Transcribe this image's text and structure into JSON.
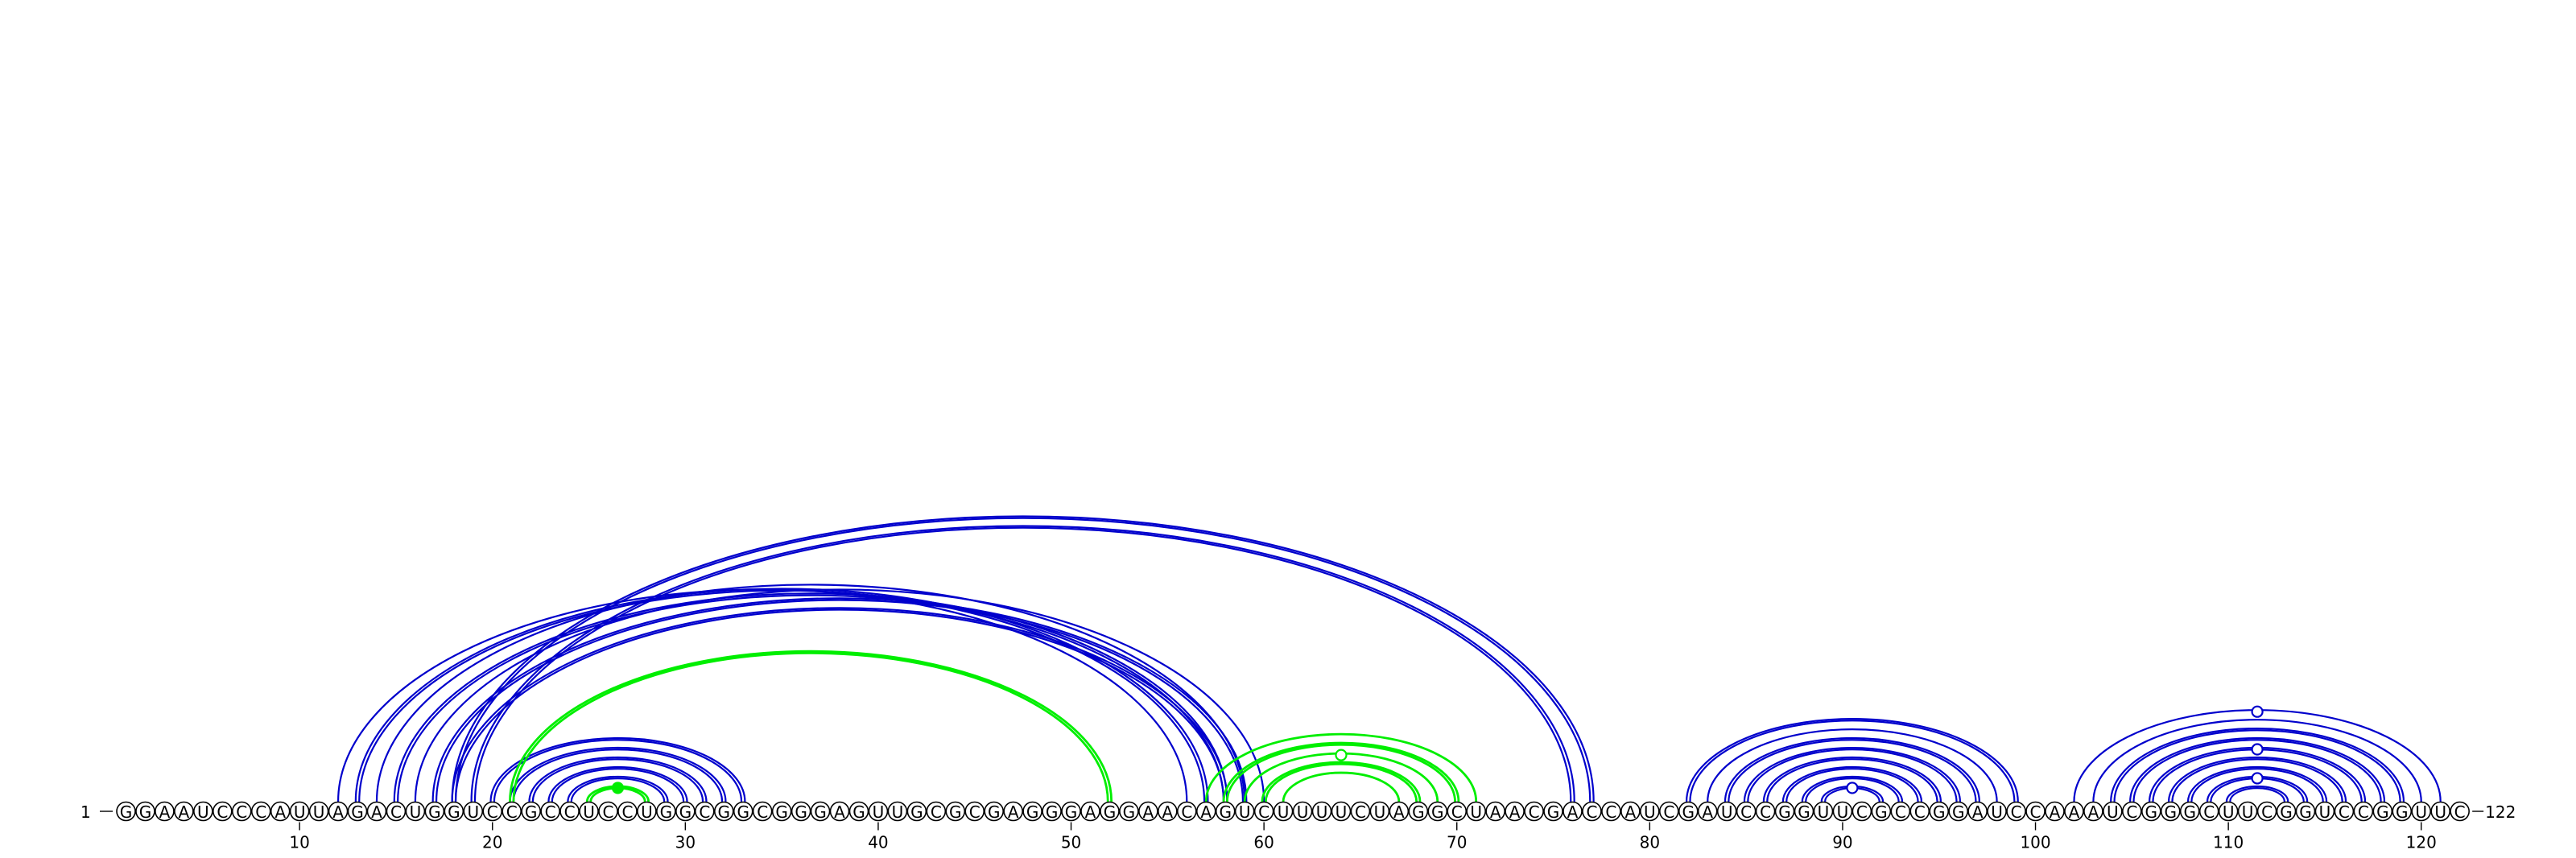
{
  "sequence": "GGAAUCCCAUUAGACUGGUCCGCCUCCUGGCGGCGGGAGUUGCGCGAGGGAGGAACAGUCUUUUCUAGGCUAACGACCAUCGAUCCGGUUCGCCGGAUCCAAAUCGGGCUUCGGUCCGGUUC",
  "start_label": "1",
  "end_label": "122",
  "tick_labels": [
    "10",
    "20",
    "30",
    "40",
    "50",
    "60",
    "70",
    "80",
    "90",
    "100",
    "110",
    "120"
  ],
  "tick_positions": [
    10,
    20,
    30,
    40,
    50,
    60,
    70,
    80,
    90,
    100,
    110,
    120
  ],
  "colors": {
    "blue": "#0000cc",
    "green": "#00ee00"
  },
  "pairs": [
    {
      "i": 12,
      "j": 56,
      "color": "blue",
      "double": false
    },
    {
      "i": 13,
      "j": 57,
      "color": "blue",
      "double": true
    },
    {
      "i": 14,
      "j": 59,
      "color": "blue",
      "double": false
    },
    {
      "i": 15,
      "j": 58,
      "color": "blue",
      "double": true
    },
    {
      "i": 16,
      "j": 60,
      "color": "blue",
      "double": false
    },
    {
      "i": 17,
      "j": 59,
      "color": "blue",
      "double": true
    },
    {
      "i": 18,
      "j": 58,
      "color": "blue",
      "double": true
    },
    {
      "i": 18,
      "j": 77,
      "color": "blue",
      "double": true
    },
    {
      "i": 19,
      "j": 76,
      "color": "blue",
      "double": true
    },
    {
      "i": 20,
      "j": 33,
      "color": "blue",
      "double": true
    },
    {
      "i": 21,
      "j": 32,
      "color": "blue",
      "double": true
    },
    {
      "i": 22,
      "j": 31,
      "color": "blue",
      "double": true
    },
    {
      "i": 23,
      "j": 30,
      "color": "blue",
      "double": true
    },
    {
      "i": 24,
      "j": 29,
      "color": "blue",
      "double": true
    },
    {
      "i": 25,
      "j": 28,
      "color": "green",
      "double": true
    },
    {
      "i": 21,
      "j": 52,
      "color": "green",
      "double": true
    },
    {
      "i": 57,
      "j": 71,
      "color": "green",
      "double": false
    },
    {
      "i": 58,
      "j": 70,
      "color": "green",
      "double": true
    },
    {
      "i": 59,
      "j": 69,
      "color": "green",
      "double": false
    },
    {
      "i": 60,
      "j": 68,
      "color": "green",
      "double": true
    },
    {
      "i": 61,
      "j": 67,
      "color": "green",
      "double": false
    },
    {
      "i": 82,
      "j": 99,
      "color": "blue",
      "double": true
    },
    {
      "i": 83,
      "j": 98,
      "color": "blue",
      "double": false
    },
    {
      "i": 84,
      "j": 97,
      "color": "blue",
      "double": true
    },
    {
      "i": 85,
      "j": 96,
      "color": "blue",
      "double": true
    },
    {
      "i": 86,
      "j": 95,
      "color": "blue",
      "double": true
    },
    {
      "i": 87,
      "j": 94,
      "color": "blue",
      "double": true
    },
    {
      "i": 88,
      "j": 93,
      "color": "blue",
      "double": true
    },
    {
      "i": 89,
      "j": 92,
      "color": "blue",
      "double": true
    },
    {
      "i": 102,
      "j": 121,
      "color": "blue",
      "double": false
    },
    {
      "i": 103,
      "j": 120,
      "color": "blue",
      "double": false
    },
    {
      "i": 104,
      "j": 119,
      "color": "blue",
      "double": true
    },
    {
      "i": 105,
      "j": 118,
      "color": "blue",
      "double": true
    },
    {
      "i": 106,
      "j": 117,
      "color": "blue",
      "double": true
    },
    {
      "i": 107,
      "j": 116,
      "color": "blue",
      "double": true
    },
    {
      "i": 108,
      "j": 115,
      "color": "blue",
      "double": true
    },
    {
      "i": 109,
      "j": 114,
      "color": "blue",
      "double": true
    },
    {
      "i": 110,
      "j": 113,
      "color": "blue",
      "double": true
    }
  ],
  "markers": [
    {
      "after_pair_index": 14,
      "color": "green",
      "filled": true
    },
    {
      "after_pair_index": 18,
      "color": "green",
      "filled": false
    },
    {
      "after_pair_index": 28,
      "color": "blue",
      "filled": false
    },
    {
      "after_pair_index": 29,
      "color": "blue",
      "filled": false
    },
    {
      "after_pair_index": 33,
      "color": "blue",
      "filled": false
    },
    {
      "after_pair_index": 36,
      "color": "blue",
      "filled": false
    }
  ]
}
